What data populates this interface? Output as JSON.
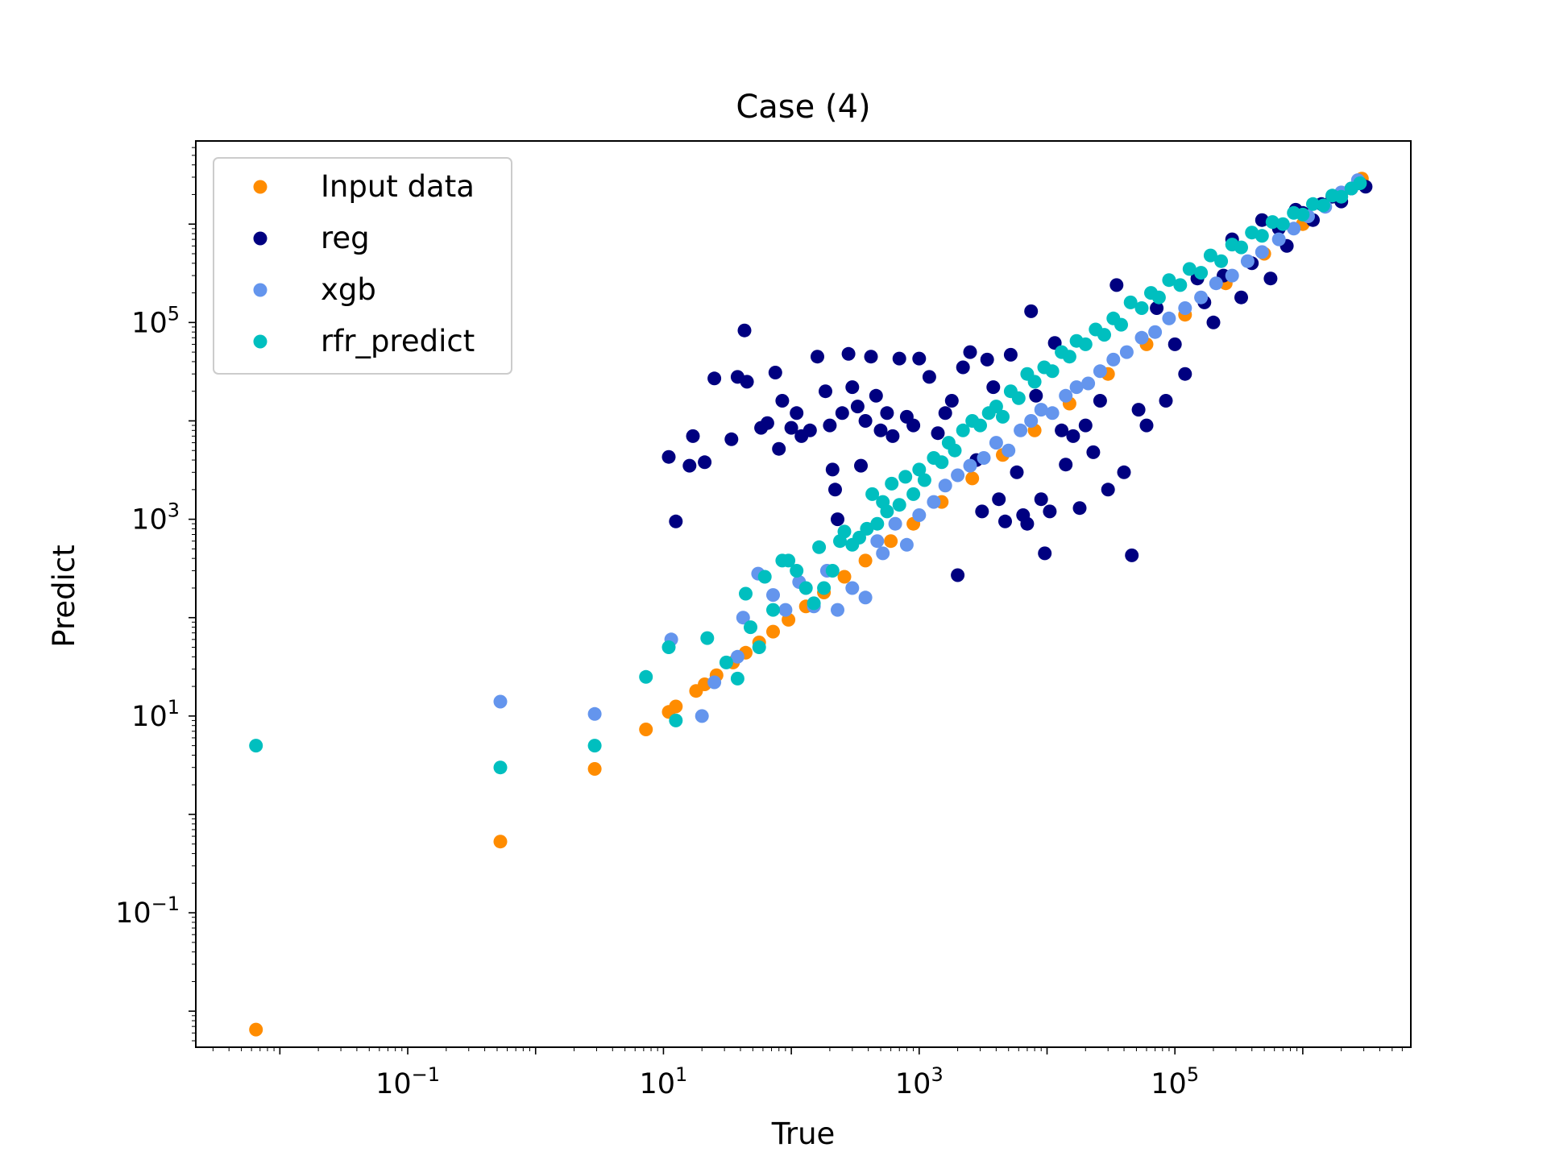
{
  "chart_data": {
    "type": "scatter",
    "title": "Case (4)",
    "xlabel": "True",
    "ylabel": "Predict",
    "xscale": "log",
    "yscale": "log",
    "xlim": [
      0.0022,
      7000000
    ],
    "ylim": [
      0.0043,
      7000000
    ],
    "x_ticks": [
      {
        "value": 0.1,
        "base": "10",
        "exp": "−1"
      },
      {
        "value": 10,
        "base": "10",
        "exp": "1"
      },
      {
        "value": 1000,
        "base": "10",
        "exp": "3"
      },
      {
        "value": 100000,
        "base": "10",
        "exp": "5"
      }
    ],
    "y_ticks": [
      {
        "value": 0.1,
        "base": "10",
        "exp": "−1"
      },
      {
        "value": 10,
        "base": "10",
        "exp": "1"
      },
      {
        "value": 1000,
        "base": "10",
        "exp": "3"
      },
      {
        "value": 100000,
        "base": "10",
        "exp": "5"
      }
    ],
    "grid": false,
    "legend_position": "top-left",
    "series": [
      {
        "name": "Input data",
        "color": "#ff8c00",
        "points": [
          [
            0.0065,
            0.0065
          ],
          [
            0.53,
            0.53
          ],
          [
            2.9,
            2.9
          ],
          [
            7.3,
            7.3
          ],
          [
            11,
            11
          ],
          [
            12.5,
            12.5
          ],
          [
            18,
            18
          ],
          [
            21,
            21
          ],
          [
            26,
            26
          ],
          [
            35,
            35
          ],
          [
            44,
            44
          ],
          [
            56,
            56
          ],
          [
            72,
            72
          ],
          [
            95,
            95
          ],
          [
            130,
            130
          ],
          [
            180,
            180
          ],
          [
            260,
            260
          ],
          [
            380,
            380
          ],
          [
            600,
            600
          ],
          [
            900,
            900
          ],
          [
            1500,
            1500
          ],
          [
            2600,
            2600
          ],
          [
            4500,
            4500
          ],
          [
            8000,
            8000
          ],
          [
            15000,
            15000
          ],
          [
            30000,
            30000
          ],
          [
            60000,
            60000
          ],
          [
            120000,
            120000
          ],
          [
            250000,
            250000
          ],
          [
            500000,
            500000
          ],
          [
            1000000,
            1000000
          ],
          [
            2000000,
            2000000
          ],
          [
            2900000,
            2900000
          ]
        ]
      },
      {
        "name": "reg",
        "color": "#000080",
        "points": [
          [
            12.5,
            950
          ],
          [
            11,
            4300
          ],
          [
            16,
            3500
          ],
          [
            21,
            3800
          ],
          [
            17,
            7000
          ],
          [
            25,
            27000
          ],
          [
            38,
            28000
          ],
          [
            34,
            6500
          ],
          [
            45,
            25000
          ],
          [
            43,
            83000
          ],
          [
            58,
            8500
          ],
          [
            65,
            9500
          ],
          [
            75,
            31000
          ],
          [
            80,
            5200
          ],
          [
            85,
            16000
          ],
          [
            100,
            8500
          ],
          [
            110,
            12000
          ],
          [
            120,
            7000
          ],
          [
            140,
            8000
          ],
          [
            160,
            45000
          ],
          [
            185,
            20000
          ],
          [
            200,
            9000
          ],
          [
            210,
            3200
          ],
          [
            220,
            2000
          ],
          [
            230,
            1000
          ],
          [
            250,
            12000
          ],
          [
            280,
            48000
          ],
          [
            300,
            22000
          ],
          [
            330,
            14000
          ],
          [
            350,
            3500
          ],
          [
            380,
            10000
          ],
          [
            420,
            45000
          ],
          [
            460,
            18000
          ],
          [
            500,
            8000
          ],
          [
            560,
            12000
          ],
          [
            620,
            7000
          ],
          [
            700,
            43000
          ],
          [
            800,
            11000
          ],
          [
            900,
            9000
          ],
          [
            1000,
            43000
          ],
          [
            1200,
            28000
          ],
          [
            1400,
            7500
          ],
          [
            1600,
            12000
          ],
          [
            1800,
            16000
          ],
          [
            2000,
            270
          ],
          [
            2200,
            35000
          ],
          [
            2500,
            50000
          ],
          [
            2800,
            4000
          ],
          [
            3100,
            1200
          ],
          [
            3400,
            42000
          ],
          [
            3800,
            22000
          ],
          [
            4200,
            1600
          ],
          [
            4700,
            950
          ],
          [
            5200,
            47000
          ],
          [
            5800,
            3000
          ],
          [
            6500,
            1100
          ],
          [
            7000,
            900
          ],
          [
            7500,
            130000
          ],
          [
            8200,
            18000
          ],
          [
            9000,
            1600
          ],
          [
            9600,
            450
          ],
          [
            10500,
            1200
          ],
          [
            11500,
            62000
          ],
          [
            13000,
            8000
          ],
          [
            14000,
            3600
          ],
          [
            16000,
            7000
          ],
          [
            18000,
            1300
          ],
          [
            20000,
            9000
          ],
          [
            23000,
            4800
          ],
          [
            26000,
            16000
          ],
          [
            30000,
            2000
          ],
          [
            35000,
            240000
          ],
          [
            40000,
            3000
          ],
          [
            46000,
            430
          ],
          [
            52000,
            13000
          ],
          [
            60000,
            9000
          ],
          [
            72000,
            140000
          ],
          [
            85000,
            16000
          ],
          [
            100000,
            60000
          ],
          [
            120000,
            30000
          ],
          [
            150000,
            280000
          ],
          [
            170000,
            160000
          ],
          [
            200000,
            100000
          ],
          [
            240000,
            300000
          ],
          [
            280000,
            700000
          ],
          [
            330000,
            180000
          ],
          [
            400000,
            400000
          ],
          [
            480000,
            1100000
          ],
          [
            560000,
            280000
          ],
          [
            650000,
            900000
          ],
          [
            750000,
            600000
          ],
          [
            880000,
            1400000
          ],
          [
            1000000,
            1300000
          ],
          [
            1200000,
            1100000
          ],
          [
            1400000,
            1600000
          ],
          [
            1700000,
            1900000
          ],
          [
            2000000,
            1700000
          ],
          [
            2400000,
            2300000
          ],
          [
            2800000,
            2600000
          ],
          [
            3100000,
            2400000
          ]
        ]
      },
      {
        "name": "xgb",
        "color": "#6495ed",
        "points": [
          [
            0.53,
            14
          ],
          [
            2.9,
            10.5
          ],
          [
            11.5,
            60
          ],
          [
            20,
            10
          ],
          [
            25,
            22
          ],
          [
            38,
            40
          ],
          [
            42,
            100
          ],
          [
            55,
            280
          ],
          [
            72,
            170
          ],
          [
            90,
            120
          ],
          [
            115,
            230
          ],
          [
            150,
            130
          ],
          [
            190,
            300
          ],
          [
            230,
            120
          ],
          [
            300,
            200
          ],
          [
            380,
            160
          ],
          [
            470,
            600
          ],
          [
            520,
            450
          ],
          [
            650,
            900
          ],
          [
            800,
            550
          ],
          [
            1000,
            1100
          ],
          [
            1300,
            1500
          ],
          [
            1600,
            2200
          ],
          [
            2000,
            2800
          ],
          [
            2500,
            3500
          ],
          [
            3200,
            4200
          ],
          [
            4000,
            6000
          ],
          [
            5000,
            5000
          ],
          [
            6200,
            8000
          ],
          [
            7500,
            10000
          ],
          [
            9000,
            13000
          ],
          [
            11000,
            12000
          ],
          [
            14000,
            18000
          ],
          [
            17000,
            22000
          ],
          [
            21000,
            24000
          ],
          [
            26000,
            32000
          ],
          [
            33000,
            42000
          ],
          [
            42000,
            50000
          ],
          [
            55000,
            70000
          ],
          [
            70000,
            80000
          ],
          [
            90000,
            110000
          ],
          [
            120000,
            140000
          ],
          [
            160000,
            180000
          ],
          [
            210000,
            250000
          ],
          [
            280000,
            300000
          ],
          [
            370000,
            420000
          ],
          [
            480000,
            520000
          ],
          [
            650000,
            700000
          ],
          [
            850000,
            900000
          ],
          [
            1100000,
            1200000
          ],
          [
            1500000,
            1500000
          ],
          [
            2000000,
            2100000
          ],
          [
            2700000,
            2800000
          ]
        ]
      },
      {
        "name": "rfr_predict",
        "color": "#00bfbf",
        "points": [
          [
            0.0065,
            5
          ],
          [
            0.53,
            3
          ],
          [
            2.9,
            5
          ],
          [
            7.3,
            25
          ],
          [
            11,
            50
          ],
          [
            12.5,
            9
          ],
          [
            22,
            62
          ],
          [
            31,
            35
          ],
          [
            38,
            24
          ],
          [
            44,
            175
          ],
          [
            48,
            80
          ],
          [
            56,
            50
          ],
          [
            62,
            260
          ],
          [
            72,
            120
          ],
          [
            85,
            380
          ],
          [
            95,
            380
          ],
          [
            110,
            300
          ],
          [
            130,
            200
          ],
          [
            150,
            140
          ],
          [
            165,
            520
          ],
          [
            180,
            200
          ],
          [
            210,
            300
          ],
          [
            240,
            600
          ],
          [
            260,
            750
          ],
          [
            300,
            550
          ],
          [
            340,
            650
          ],
          [
            390,
            800
          ],
          [
            430,
            1800
          ],
          [
            470,
            900
          ],
          [
            520,
            1500
          ],
          [
            560,
            1200
          ],
          [
            610,
            2300
          ],
          [
            700,
            1400
          ],
          [
            780,
            2700
          ],
          [
            900,
            1800
          ],
          [
            1000,
            3200
          ],
          [
            1100,
            2500
          ],
          [
            1300,
            4200
          ],
          [
            1500,
            3800
          ],
          [
            1700,
            6000
          ],
          [
            1900,
            5000
          ],
          [
            2200,
            8000
          ],
          [
            2600,
            10000
          ],
          [
            3000,
            9000
          ],
          [
            3500,
            12000
          ],
          [
            4000,
            14000
          ],
          [
            4500,
            11000
          ],
          [
            5200,
            20000
          ],
          [
            6000,
            17000
          ],
          [
            7000,
            30000
          ],
          [
            8000,
            25000
          ],
          [
            9500,
            35000
          ],
          [
            11000,
            32000
          ],
          [
            13000,
            50000
          ],
          [
            15000,
            45000
          ],
          [
            17000,
            65000
          ],
          [
            20000,
            60000
          ],
          [
            24000,
            85000
          ],
          [
            28000,
            75000
          ],
          [
            33000,
            110000
          ],
          [
            38000,
            95000
          ],
          [
            45000,
            160000
          ],
          [
            55000,
            140000
          ],
          [
            65000,
            200000
          ],
          [
            75000,
            180000
          ],
          [
            90000,
            270000
          ],
          [
            110000,
            240000
          ],
          [
            130000,
            350000
          ],
          [
            160000,
            320000
          ],
          [
            190000,
            480000
          ],
          [
            230000,
            420000
          ],
          [
            280000,
            620000
          ],
          [
            330000,
            580000
          ],
          [
            400000,
            820000
          ],
          [
            480000,
            760000
          ],
          [
            580000,
            1050000
          ],
          [
            700000,
            1000000
          ],
          [
            850000,
            1300000
          ],
          [
            1000000,
            1250000
          ],
          [
            1200000,
            1600000
          ],
          [
            1450000,
            1550000
          ],
          [
            1700000,
            1950000
          ],
          [
            2000000,
            1900000
          ],
          [
            2400000,
            2300000
          ],
          [
            2800000,
            2600000
          ]
        ]
      }
    ]
  }
}
